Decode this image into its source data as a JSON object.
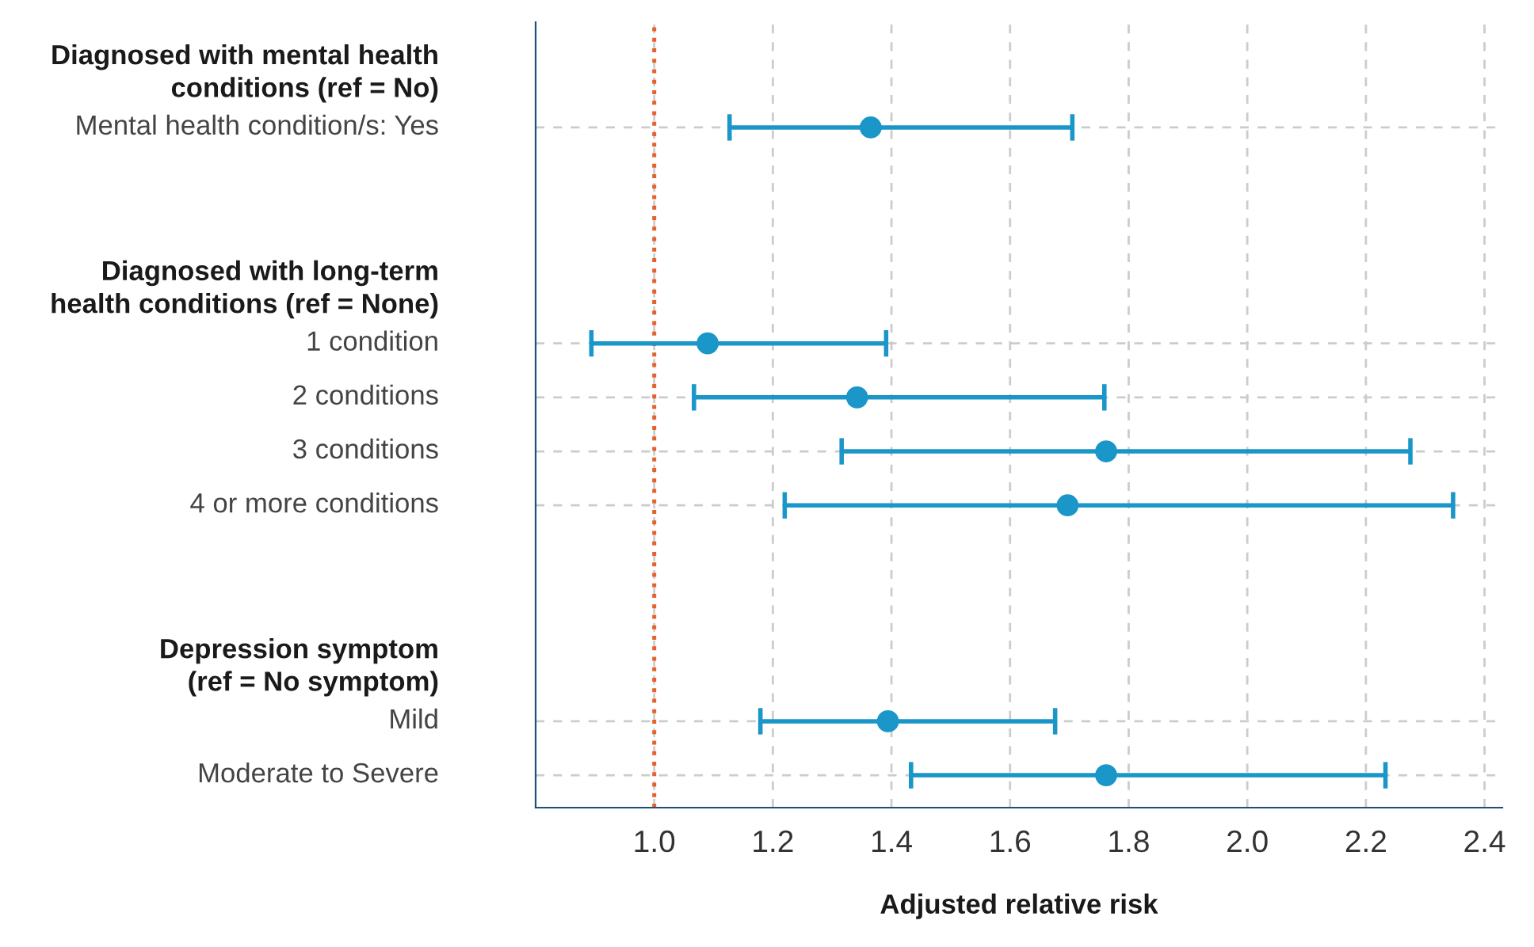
{
  "chart_data": {
    "type": "scatter",
    "xlabel": "Adjusted relative risk",
    "categories": [
      "Diagnosed with mental health\nconditions (ref = No)",
      "Mental health condition/s: Yes",
      null,
      null,
      "Diagnosed with long-term\nhealth conditions (ref = None)",
      "1 condition",
      "2 conditions",
      "3 conditions",
      "4 or more conditions",
      null,
      null,
      "Depression symptom\n(ref = No symptom)",
      "Mild",
      "Moderate to Severe"
    ],
    "orientation": "horizontal",
    "series": [
      {
        "color": "#1a96c8",
        "values": [
          null,
          1.365,
          null,
          null,
          null,
          1.09,
          1.342,
          1.762,
          1.697,
          null,
          null,
          null,
          1.394,
          1.762
        ],
        "errors": [
          null,
          [
            1.127,
            1.705
          ],
          null,
          null,
          null,
          [
            0.894,
            1.391
          ],
          [
            1.067,
            1.759
          ],
          [
            1.316,
            2.275
          ],
          [
            1.22,
            2.347
          ],
          null,
          null,
          null,
          [
            1.179,
            1.676
          ],
          [
            1.433,
            2.233
          ]
        ]
      }
    ],
    "xlim": [
      0.8,
      2.43
    ],
    "xticks": [
      {
        "value": 1.0,
        "label": "1.0"
      },
      {
        "value": 1.2,
        "label": "1.2"
      },
      {
        "value": 1.4,
        "label": "1.4"
      },
      {
        "value": 1.6,
        "label": "1.6"
      },
      {
        "value": 1.8,
        "label": "1.8"
      },
      {
        "value": 2.0,
        "label": "2.0"
      },
      {
        "value": 2.2,
        "label": "2.2"
      },
      {
        "value": 2.4,
        "label": "2.4"
      }
    ],
    "ref_lines": [
      {
        "axis": "x",
        "value": 1.0,
        "color": "#e8602c",
        "line_style": "dotted"
      }
    ],
    "grid": true,
    "marker": "circle",
    "legend": false
  }
}
